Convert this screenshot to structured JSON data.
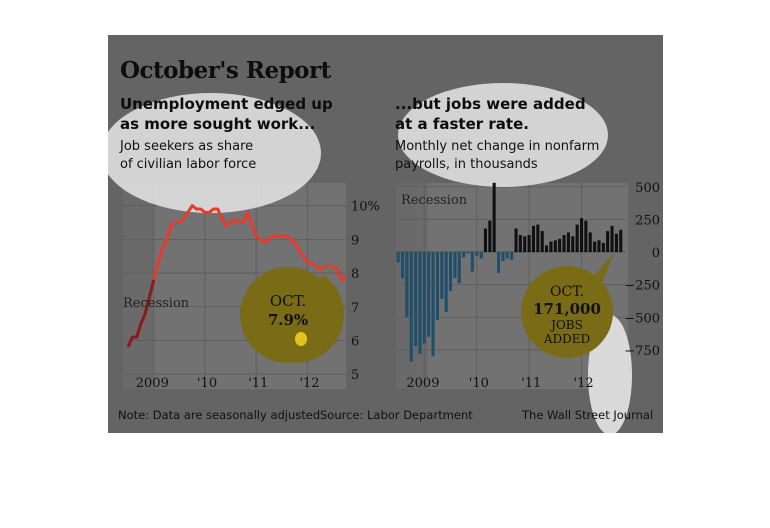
{
  "title": "October's Report",
  "left": {
    "headline": [
      "Unemployment edged up",
      "as more sought work..."
    ],
    "subtitle": [
      "Job seekers as share",
      "of civilian labor force"
    ],
    "recession_label": "Recession",
    "callout": [
      "OCT.",
      "7.9%"
    ]
  },
  "right": {
    "headline": [
      "...but jobs were added",
      "at a faster rate."
    ],
    "subtitle": [
      "Monthly net change in nonfarm",
      "payrolls, in thousands"
    ],
    "recession_label": "Recession",
    "callout": [
      "OCT.",
      "171,000",
      "JOBS",
      "ADDED"
    ]
  },
  "footer": {
    "note": "Note: Data are seasonally adjusted",
    "source": "Source: Labor Department",
    "credit": "The Wall Street Journal"
  },
  "colors": {
    "line": "#e83a2e",
    "line_pre": "#8b1a1a",
    "bar_pos": "#111111",
    "bar_neg": "#1f4f6b",
    "callout": "#7a6b16"
  },
  "chart_data": [
    {
      "type": "line",
      "x_ticks": [
        "2009",
        "'10",
        "'11",
        "'12"
      ],
      "y_ticks": [
        "10%",
        "9",
        "8",
        "7",
        "6",
        "5"
      ],
      "ylim": [
        4.5,
        10.5
      ],
      "x": [
        "2008-07",
        "2008-08",
        "2008-09",
        "2008-10",
        "2008-11",
        "2008-12",
        "2009-01",
        "2009-02",
        "2009-03",
        "2009-04",
        "2009-05",
        "2009-06",
        "2009-07",
        "2009-08",
        "2009-09",
        "2009-10",
        "2009-11",
        "2009-12",
        "2010-01",
        "2010-02",
        "2010-03",
        "2010-04",
        "2010-05",
        "2010-06",
        "2010-07",
        "2010-08",
        "2010-09",
        "2010-10",
        "2010-11",
        "2010-12",
        "2011-01",
        "2011-02",
        "2011-03",
        "2011-04",
        "2011-05",
        "2011-06",
        "2011-07",
        "2011-08",
        "2011-09",
        "2011-10",
        "2011-11",
        "2011-12",
        "2012-01",
        "2012-02",
        "2012-03",
        "2012-04",
        "2012-05",
        "2012-06",
        "2012-07",
        "2012-08",
        "2012-09",
        "2012-10"
      ],
      "values": [
        5.8,
        6.1,
        6.1,
        6.5,
        6.8,
        7.3,
        7.8,
        8.3,
        8.7,
        9.0,
        9.4,
        9.5,
        9.5,
        9.6,
        9.8,
        10.0,
        9.9,
        9.9,
        9.8,
        9.8,
        9.9,
        9.9,
        9.6,
        9.4,
        9.5,
        9.6,
        9.5,
        9.5,
        9.8,
        9.4,
        9.1,
        9.0,
        8.9,
        9.0,
        9.1,
        9.1,
        9.1,
        9.1,
        9.0,
        8.9,
        8.7,
        8.5,
        8.3,
        8.3,
        8.2,
        8.1,
        8.2,
        8.2,
        8.2,
        8.1,
        7.8,
        7.9
      ],
      "recession": [
        "2008-07",
        "2009-06"
      ]
    },
    {
      "type": "bar",
      "x_ticks": [
        "2009",
        "'10",
        "'11",
        "'12"
      ],
      "y_ticks": [
        "500",
        "250",
        "0",
        "−250",
        "−500",
        "−750"
      ],
      "ylim": [
        -875,
        580
      ],
      "x": [
        "2008-07",
        "2008-08",
        "2008-09",
        "2008-10",
        "2008-11",
        "2008-12",
        "2009-01",
        "2009-02",
        "2009-03",
        "2009-04",
        "2009-05",
        "2009-06",
        "2009-07",
        "2009-08",
        "2009-09",
        "2009-10",
        "2009-11",
        "2009-12",
        "2010-01",
        "2010-02",
        "2010-03",
        "2010-04",
        "2010-05",
        "2010-06",
        "2010-07",
        "2010-08",
        "2010-09",
        "2010-10",
        "2010-11",
        "2010-12",
        "2011-01",
        "2011-02",
        "2011-03",
        "2011-04",
        "2011-05",
        "2011-06",
        "2011-07",
        "2011-08",
        "2011-09",
        "2011-10",
        "2011-11",
        "2011-12",
        "2012-01",
        "2012-02",
        "2012-03",
        "2012-04",
        "2012-05",
        "2012-06",
        "2012-07",
        "2012-08",
        "2012-09",
        "2012-10"
      ],
      "values": [
        -80,
        -200,
        -500,
        -840,
        -720,
        -780,
        -700,
        -650,
        -800,
        -520,
        -360,
        -460,
        -300,
        -200,
        -240,
        -40,
        -10,
        -150,
        -30,
        -50,
        180,
        240,
        530,
        -160,
        -70,
        -50,
        -60,
        180,
        130,
        120,
        130,
        200,
        210,
        160,
        50,
        80,
        90,
        100,
        130,
        150,
        120,
        210,
        260,
        240,
        150,
        80,
        90,
        70,
        160,
        200,
        140,
        170
      ],
      "recession": [
        "2008-07",
        "2009-06"
      ]
    }
  ]
}
